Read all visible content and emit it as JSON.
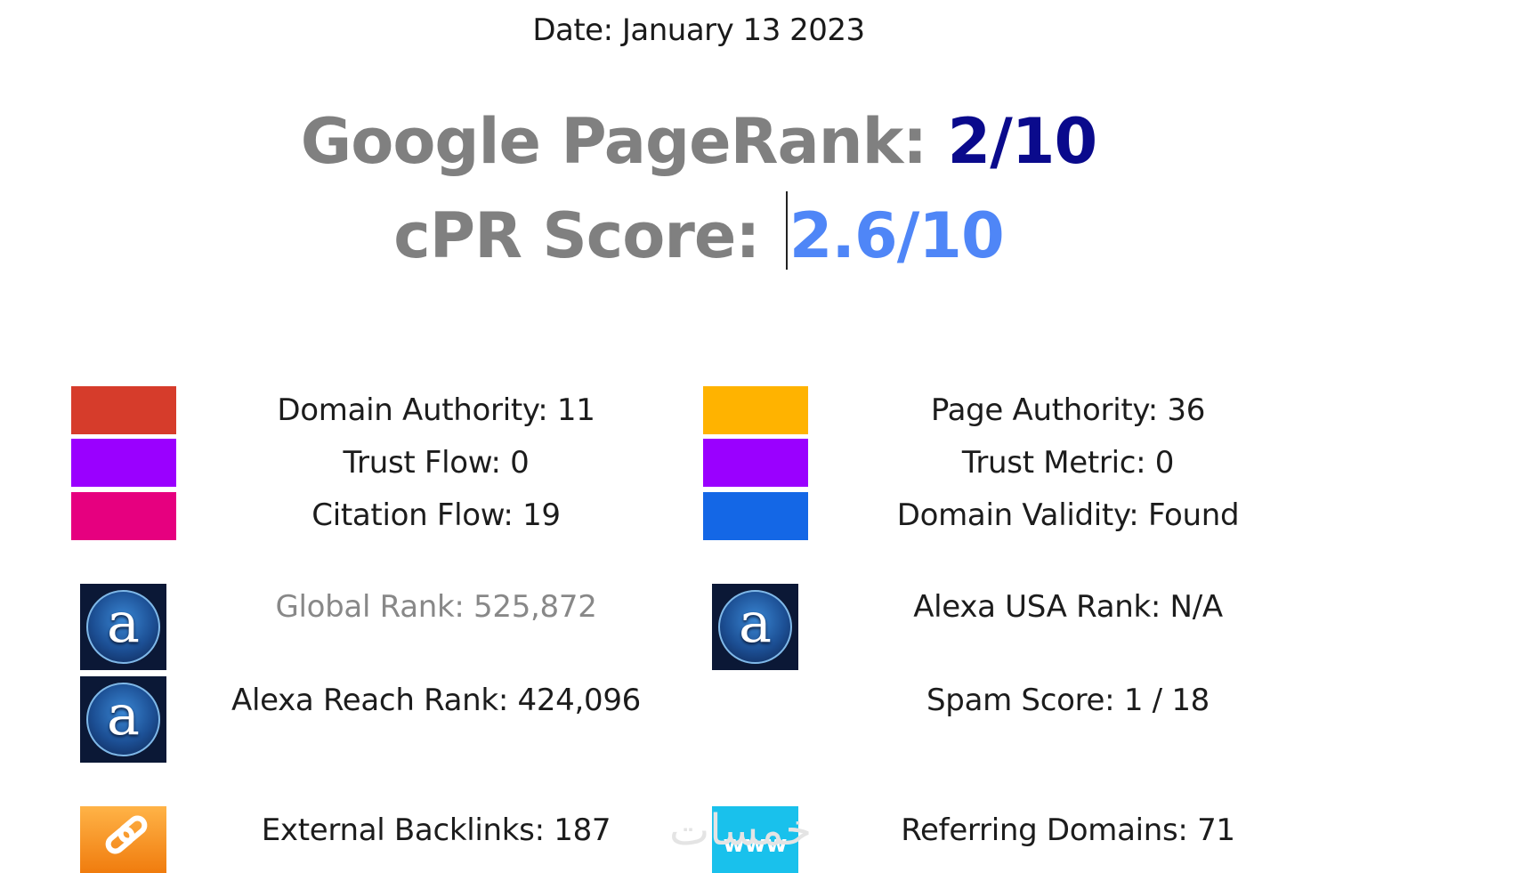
{
  "date_label": "Date: January 13 2023",
  "pagerank": {
    "label": "Google PageRank: ",
    "value": "2/10"
  },
  "cpr": {
    "label": "cPR Score: ",
    "value": "2.6/10"
  },
  "colors": {
    "domain_authority": "#d63c2b",
    "trust_flow": "#9a00ff",
    "citation_flow": "#e6007f",
    "page_authority": "#ffb300",
    "trust_metric": "#9a00ff",
    "domain_validity": "#1467e6",
    "pagerank_value": "#0a0a8c",
    "cpr_value": "#4f86f7"
  },
  "metrics_left": [
    "Domain Authority: 11",
    "Trust Flow: 0",
    "Citation Flow: 19"
  ],
  "metrics_right": [
    "Page Authority: 36",
    "Trust Metric: 0",
    "Domain Validity: Found"
  ],
  "alexa": {
    "global_rank": "Global Rank: 525,872",
    "usa_rank": "Alexa USA Rank: N/A",
    "reach_rank": "Alexa Reach Rank: 424,096",
    "spam_score": "Spam Score: 1 / 18",
    "icon_letter": "a"
  },
  "links": {
    "external_backlinks": "External Backlinks: 187",
    "referring_domains": "Referring Domains: 71",
    "www_label": "www"
  },
  "watermark": "خمسات",
  "icons": [
    "alexa-logo-icon",
    "chain-link-icon",
    "www-icon"
  ]
}
